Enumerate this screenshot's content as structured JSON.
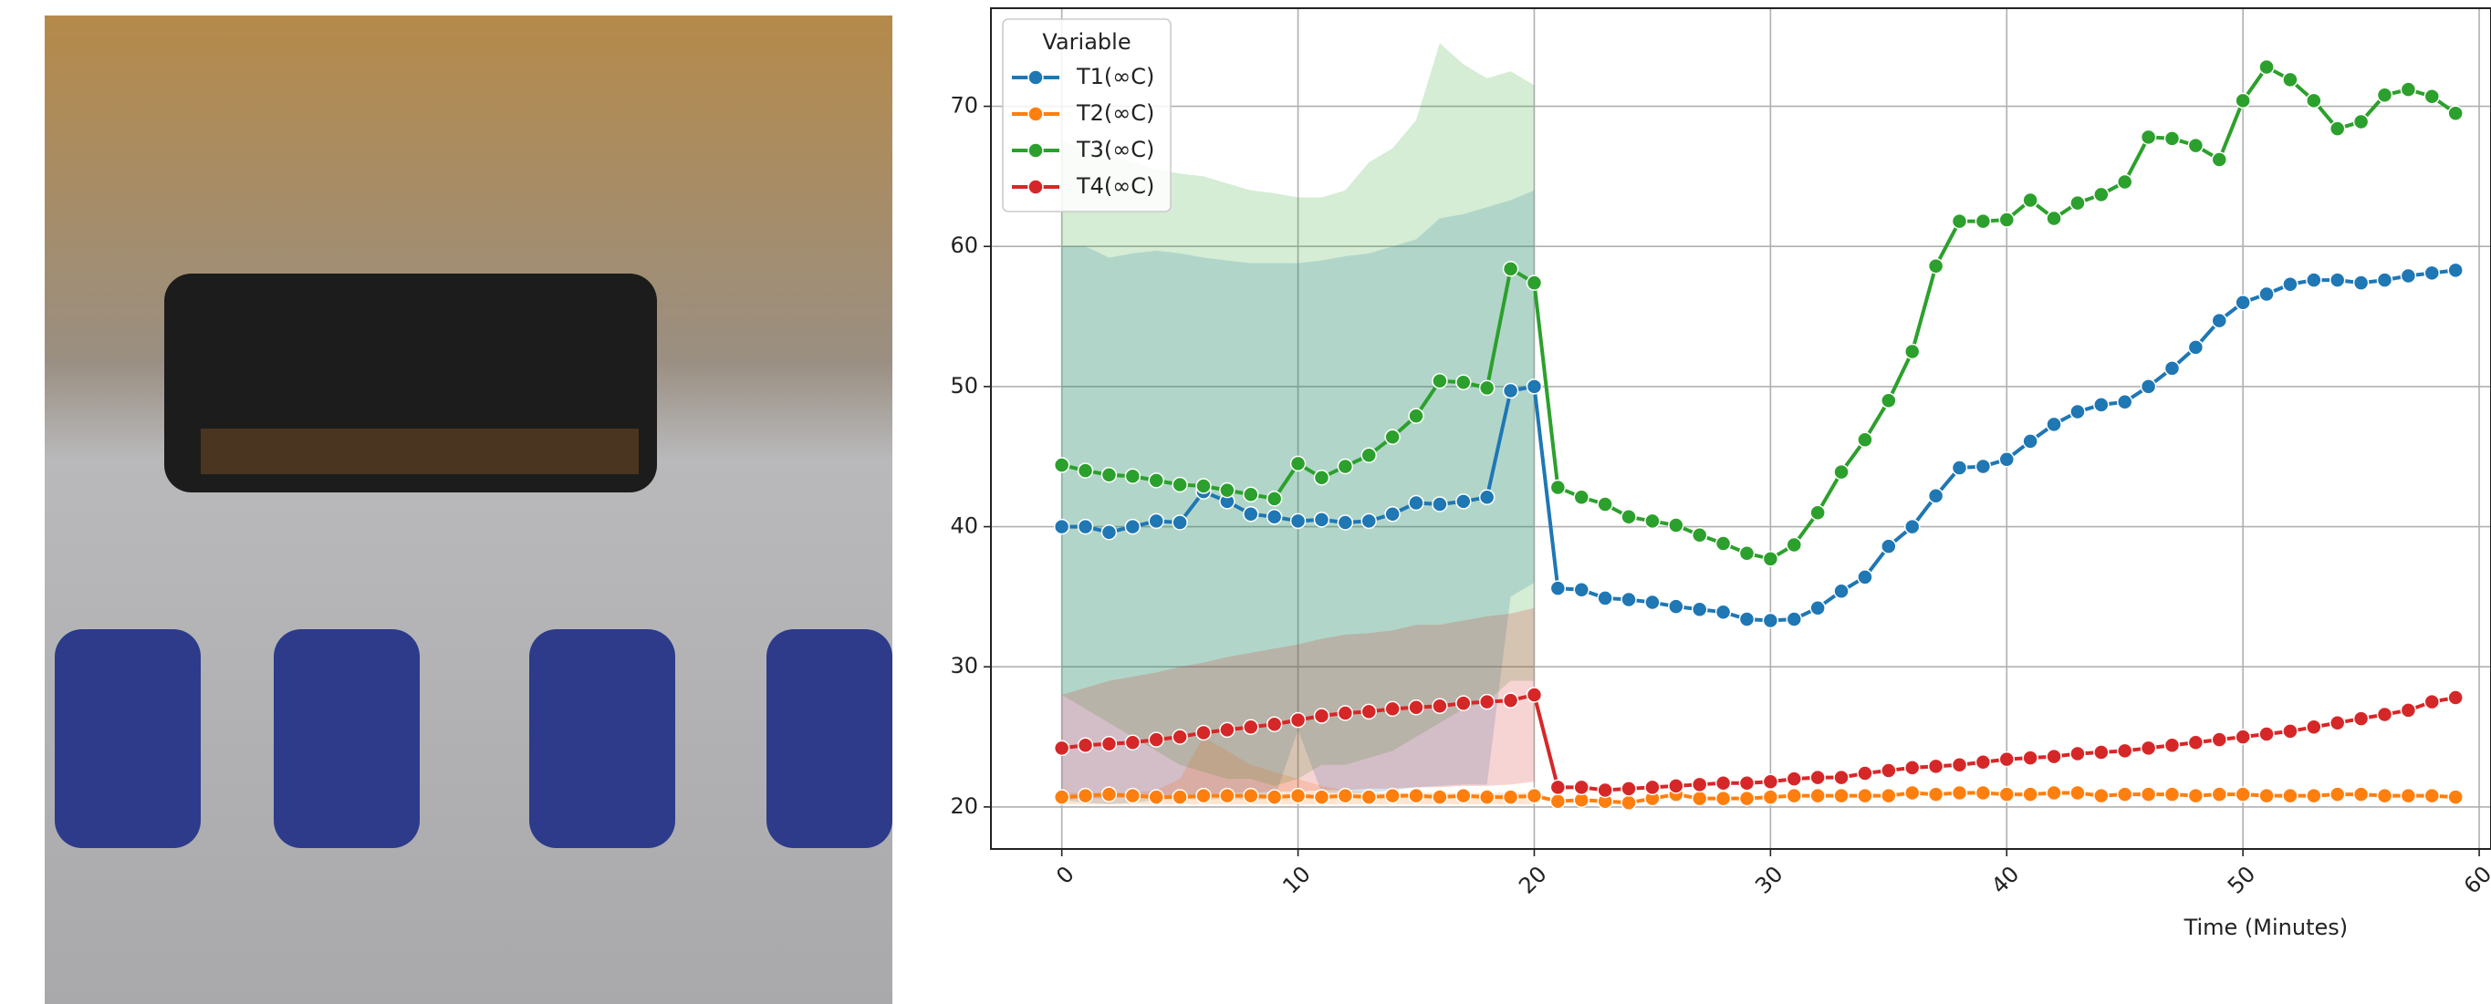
{
  "chart_data": {
    "type": "line",
    "x_label": "Time (Minutes)",
    "legend_title": "Variable",
    "legend_loc": "upper left",
    "grid": true,
    "x": [
      0,
      1,
      2,
      3,
      4,
      5,
      6,
      7,
      8,
      9,
      10,
      11,
      12,
      13,
      14,
      15,
      16,
      17,
      18,
      19,
      20,
      21,
      22,
      23,
      24,
      25,
      26,
      27,
      28,
      29,
      30,
      31,
      32,
      33,
      34,
      35,
      36,
      37,
      38,
      39,
      40,
      41,
      42,
      43,
      44,
      45,
      46,
      47,
      48,
      49,
      50,
      51,
      52,
      53,
      54,
      55,
      56,
      57,
      58,
      59
    ],
    "xlim": [
      -3,
      60.5
    ],
    "xticks": [
      0,
      10,
      20,
      30,
      40,
      50,
      60
    ],
    "ylim": [
      17,
      77
    ],
    "yticks": [
      20,
      30,
      40,
      50,
      60,
      70
    ],
    "series": [
      {
        "name": "T1(∞C)",
        "color": "#1f77b4",
        "values": [
          40,
          40,
          39.6,
          40,
          40.4,
          40.3,
          42.5,
          41.8,
          40.9,
          40.7,
          40.4,
          40.5,
          40.3,
          40.4,
          40.9,
          41.7,
          41.6,
          41.8,
          42.1,
          49.7,
          50,
          35.6,
          35.5,
          34.9,
          34.8,
          34.6,
          34.3,
          34.1,
          33.9,
          33.4,
          33.3,
          33.4,
          34.2,
          35.4,
          36.4,
          38.6,
          40,
          42.2,
          44.2,
          44.3,
          44.8,
          46.1,
          47.3,
          48.2,
          48.7,
          48.9,
          50,
          51.3,
          52.8,
          54.7,
          56,
          56.6,
          57.3,
          57.6,
          57.6,
          57.4,
          57.6,
          57.9,
          58.1,
          58.3
        ],
        "band": {
          "lower": [
            20.5,
            20.3,
            20.2,
            20.3,
            20.5,
            20.6,
            20.5,
            20.6,
            20.5,
            20.6,
            25.5,
            21,
            21,
            21,
            21.2,
            21.4,
            21.5,
            21.6,
            21.6,
            35,
            36
          ],
          "upper": [
            60,
            60,
            59.2,
            59.5,
            59.7,
            59.5,
            59.2,
            59,
            58.8,
            58.8,
            58.8,
            59,
            59.3,
            59.5,
            60,
            60.5,
            62,
            62.3,
            62.8,
            63.3,
            64
          ]
        }
      },
      {
        "name": "T2(∞C)",
        "color": "#ff7f0e",
        "values": [
          20.7,
          20.8,
          20.9,
          20.8,
          20.7,
          20.7,
          20.8,
          20.8,
          20.8,
          20.7,
          20.8,
          20.7,
          20.8,
          20.7,
          20.8,
          20.8,
          20.7,
          20.8,
          20.7,
          20.7,
          20.8,
          20.4,
          20.5,
          20.4,
          20.3,
          20.6,
          20.9,
          20.6,
          20.6,
          20.6,
          20.7,
          20.8,
          20.8,
          20.8,
          20.8,
          20.8,
          21,
          20.9,
          21,
          21,
          20.9,
          20.9,
          21,
          21,
          20.8,
          20.9,
          20.9,
          20.9,
          20.8,
          20.9,
          20.9,
          20.8,
          20.8,
          20.8,
          20.9,
          20.9,
          20.8,
          20.8,
          20.8,
          20.7
        ],
        "band": {
          "lower": [
            20.2,
            20.2,
            20.2,
            20.2,
            20.2,
            20.2,
            20.2,
            20.2,
            20.2,
            20.2,
            20.2,
            20.2,
            20.2,
            20.2,
            20.2,
            20.2,
            20.2,
            20.2,
            20.2,
            20.2,
            20.2
          ],
          "upper": [
            21,
            21,
            21,
            21,
            21.2,
            22,
            25,
            24,
            23,
            22.5,
            22,
            21.5,
            21.2,
            21,
            21,
            21,
            21,
            21,
            21,
            21,
            21
          ]
        }
      },
      {
        "name": "T3(∞C)",
        "color": "#2ca02c",
        "values": [
          44.4,
          44,
          43.7,
          43.6,
          43.3,
          43,
          42.9,
          42.6,
          42.3,
          42,
          44.5,
          43.5,
          44.3,
          45.1,
          46.4,
          47.9,
          50.4,
          50.3,
          49.9,
          58.4,
          57.4,
          42.8,
          42.1,
          41.6,
          40.7,
          40.4,
          40.1,
          39.4,
          38.8,
          38.1,
          37.7,
          38.7,
          41,
          43.9,
          46.2,
          49,
          52.5,
          58.6,
          61.8,
          61.8,
          61.9,
          63.3,
          62,
          63.1,
          63.7,
          64.6,
          67.8,
          67.7,
          67.2,
          66.2,
          70.4,
          72.8,
          71.9,
          70.4,
          68.4,
          68.9,
          70.8,
          71.2,
          70.7,
          69.5
        ],
        "band": {
          "lower": [
            28,
            27,
            26,
            25,
            24,
            23,
            22.5,
            22,
            22,
            21.5,
            22,
            23,
            23,
            23.5,
            24,
            25,
            26,
            27,
            27.5,
            29,
            29
          ],
          "upper": [
            67.5,
            67,
            66.5,
            66,
            65.5,
            65.2,
            65,
            64.5,
            64,
            63.8,
            63.5,
            63.5,
            64,
            66,
            67,
            69,
            74.5,
            73,
            72,
            72.5,
            71.5
          ]
        }
      },
      {
        "name": "T4(∞C)",
        "color": "#d62728",
        "values": [
          24.2,
          24.4,
          24.5,
          24.6,
          24.8,
          25,
          25.3,
          25.5,
          25.7,
          25.9,
          26.2,
          26.5,
          26.7,
          26.8,
          27,
          27.1,
          27.2,
          27.4,
          27.5,
          27.6,
          28,
          21.4,
          21.4,
          21.2,
          21.3,
          21.4,
          21.5,
          21.6,
          21.7,
          21.7,
          21.8,
          22,
          22.1,
          22.1,
          22.4,
          22.6,
          22.8,
          22.9,
          23,
          23.2,
          23.4,
          23.5,
          23.6,
          23.8,
          23.9,
          24,
          24.2,
          24.4,
          24.6,
          24.8,
          25,
          25.2,
          25.4,
          25.7,
          26,
          26.3,
          26.6,
          26.9,
          27.5,
          27.8
        ],
        "band": {
          "lower": [
            20.5,
            20.6,
            20.6,
            20.7,
            20.8,
            20.8,
            20.9,
            21,
            21,
            21.1,
            21.1,
            21.2,
            21.2,
            21.3,
            21.3,
            21.4,
            21.4,
            21.5,
            21.5,
            21.6,
            21.8
          ],
          "upper": [
            28,
            28.5,
            29,
            29.3,
            29.6,
            30,
            30.3,
            30.7,
            31,
            31.3,
            31.6,
            32,
            32.3,
            32.4,
            32.6,
            33,
            33,
            33.3,
            33.6,
            33.8,
            34.2
          ]
        }
      }
    ]
  }
}
